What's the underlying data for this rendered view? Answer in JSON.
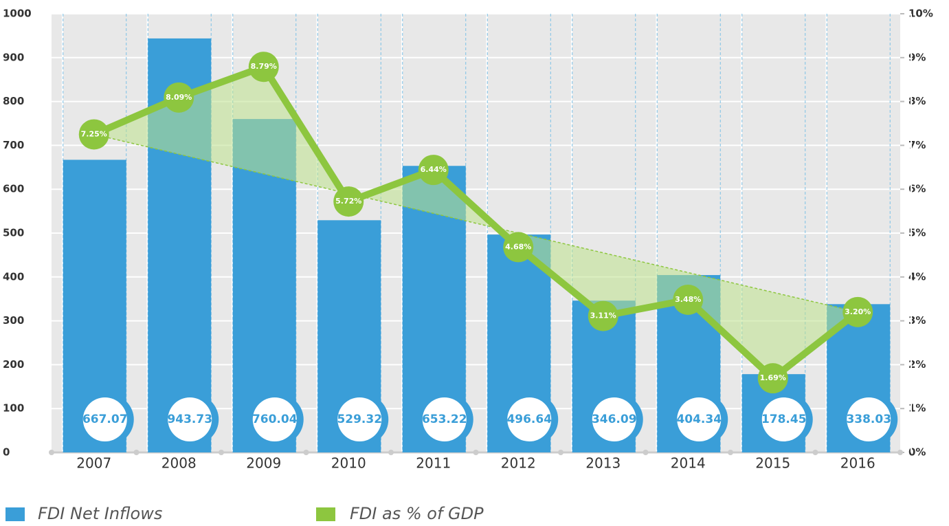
{
  "chart_data": {
    "type": "bar_line",
    "categories": [
      "2007",
      "2008",
      "2009",
      "2010",
      "2011",
      "2012",
      "2013",
      "2014",
      "2015",
      "2016"
    ],
    "series": [
      {
        "name": "FDI Net Inflows",
        "color": "#3a9ed8",
        "type": "bar",
        "values": [
          667.07,
          943.73,
          760.04,
          529.32,
          653.22,
          496.64,
          346.09,
          404.34,
          178.45,
          338.03
        ]
      },
      {
        "name": "FDI as % of GDP",
        "color": "#8dc63f",
        "type": "line",
        "axis": "y2",
        "values": [
          7.25,
          8.09,
          8.79,
          5.72,
          6.44,
          4.68,
          3.11,
          3.48,
          1.69,
          3.2
        ],
        "value_labels": [
          "7.25%",
          "8.09%",
          "8.79%",
          "5.72%",
          "6.44%",
          "4.68%",
          "3.11%",
          "3.48%",
          "1.69%",
          "3.20%"
        ]
      }
    ],
    "ylim": [
      0,
      1000
    ],
    "yticks": [
      0,
      100,
      200,
      300,
      400,
      500,
      600,
      700,
      800,
      900,
      1000
    ],
    "y2lim": [
      0,
      10
    ],
    "y2ticks": [
      {
        "value": 0,
        "label": "0%"
      },
      {
        "value": 1,
        "label": "1%"
      },
      {
        "value": 2,
        "label": "2%"
      },
      {
        "value": 3,
        "label": "3%"
      },
      {
        "value": 4,
        "label": "4%"
      },
      {
        "value": 5,
        "label": "5%"
      },
      {
        "value": 6,
        "label": "6%"
      },
      {
        "value": 7,
        "label": "7%"
      },
      {
        "value": 8,
        "label": "8%"
      },
      {
        "value": 9,
        "label": "9%"
      },
      {
        "value": 10,
        "label": "10%"
      }
    ],
    "grid": true,
    "legend": "bottom-left"
  }
}
